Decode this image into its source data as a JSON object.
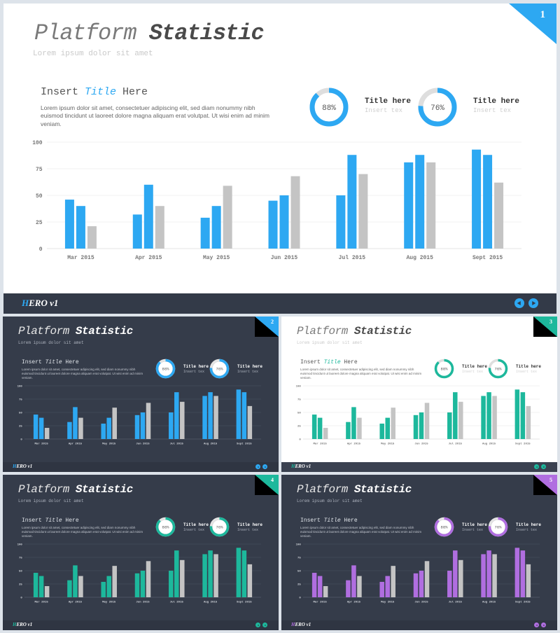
{
  "slide": {
    "title_light": "Platform",
    "title_bold": "Statistic",
    "subtitle": "Lorem ipsum dolor sit amet",
    "heading_pre": "Insert ",
    "heading_accent": "Title",
    "heading_post": " Here",
    "body": "Lorem ipsum dolor sit amet, consectetuer adipiscing elit, sed diam nonummy nibh euismod tincidunt ut laoreet dolore magna aliquam erat volutpat. Ut wisi enim ad minim veniam.",
    "kpis": [
      {
        "label": "88%",
        "value": 88,
        "title": "Title here",
        "sub": "Insert tex"
      },
      {
        "label": "76%",
        "value": 76,
        "title": "Title here",
        "sub": "Insert tex"
      }
    ],
    "logo_a": "H",
    "logo_b": "ERO v1"
  },
  "slides": [
    {
      "num": "1",
      "theme": "light",
      "accent": "#2da8f2"
    },
    {
      "num": "2",
      "theme": "dark",
      "accent": "#2da8f2"
    },
    {
      "num": "3",
      "theme": "light",
      "accent": "#1db89c"
    },
    {
      "num": "4",
      "theme": "dark",
      "accent": "#1db89c"
    },
    {
      "num": "5",
      "theme": "dark",
      "accent": "#b06ee0"
    }
  ],
  "chart_data": {
    "type": "bar",
    "categories": [
      "Mar 2015",
      "Apr 2015",
      "May 2015",
      "Jun 2015",
      "Jul 2015",
      "Aug 2015",
      "Sept 2015"
    ],
    "series": [
      {
        "values": [
          46,
          32,
          29,
          45,
          50,
          81,
          93
        ]
      },
      {
        "values": [
          40,
          60,
          40,
          50,
          88,
          88,
          88
        ]
      },
      {
        "values": [
          21,
          40,
          59,
          68,
          70,
          81,
          62
        ]
      }
    ],
    "yticks": [
      0,
      25,
      50,
      75,
      100
    ],
    "ylim": [
      0,
      100
    ],
    "colors": {
      "series3": "#c4c4c4",
      "grid_light": "#e6e6e6",
      "grid_dark": "#4a5262"
    }
  }
}
